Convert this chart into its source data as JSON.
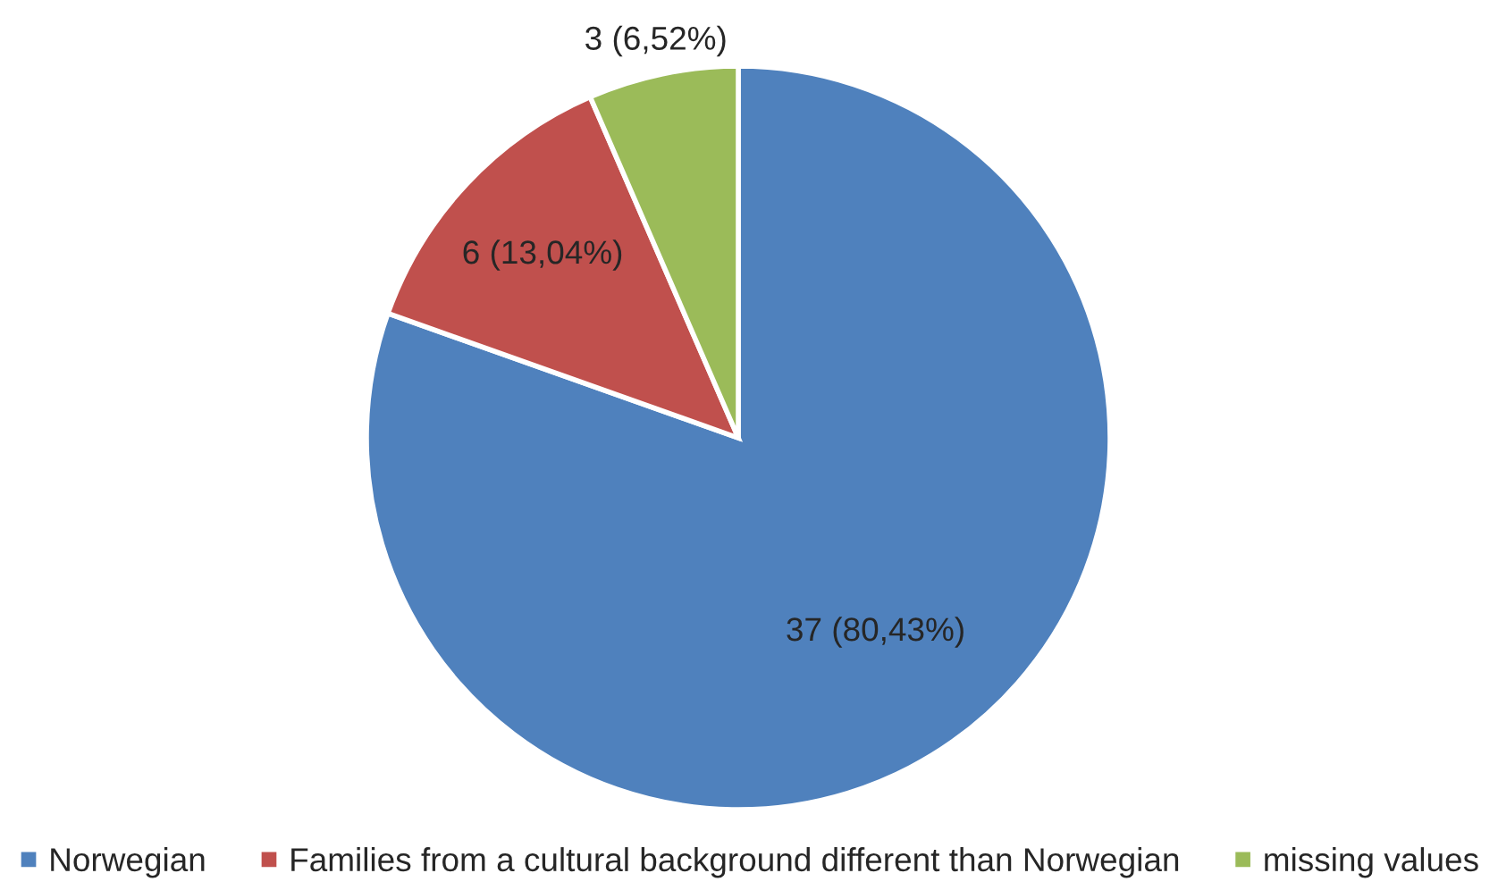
{
  "chart_data": {
    "type": "pie",
    "categories": [
      "Norwegian",
      "Families from a cultural background different than Norwegian",
      "missing values"
    ],
    "values": [
      37,
      6,
      3
    ],
    "colors": [
      "#4f81bd",
      "#c0504d",
      "#9bbb59"
    ],
    "value_labels": [
      "37 (80,43%)",
      "6 (13,04%)",
      "3 (6,52%)"
    ],
    "legend": "bottom"
  }
}
